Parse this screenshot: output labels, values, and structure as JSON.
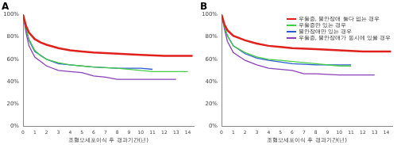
{
  "chart_data": [
    {
      "type": "line",
      "title": "A",
      "x_label": "조혈모세포이식 후 경과기간(년)",
      "xlim": [
        0,
        14.5
      ],
      "xticks": [
        0,
        1,
        2,
        3,
        4,
        5,
        6,
        7,
        8,
        9,
        10,
        11,
        12,
        13,
        14
      ],
      "ylim": [
        0,
        100
      ],
      "yticks": [
        {
          "value": 0,
          "label": "0%"
        },
        {
          "value": 20,
          "label": "20%"
        },
        {
          "value": 40,
          "label": "40%"
        },
        {
          "value": 60,
          "label": "60%"
        },
        {
          "value": 80,
          "label": "80%"
        },
        {
          "value": 100,
          "label": "100%"
        }
      ],
      "grid": false,
      "series": [
        {
          "color": "#e0201b",
          "x": [
            0,
            0.25,
            0.5,
            1,
            1.5,
            2,
            3,
            4,
            5,
            6,
            8,
            10,
            12,
            14,
            14.4
          ],
          "values": [
            100,
            90,
            84,
            78,
            75,
            73,
            70,
            68,
            67,
            66,
            65,
            64,
            63,
            63,
            63
          ]
        },
        {
          "color": "#44cc44",
          "x": [
            0,
            0.25,
            0.5,
            1,
            1.5,
            2,
            3,
            4,
            5,
            6,
            8,
            10,
            11,
            14
          ],
          "values": [
            100,
            88,
            78,
            68,
            63,
            60,
            57,
            55,
            54,
            53,
            52,
            50,
            49,
            49
          ]
        },
        {
          "color": "#2a5bd0",
          "x": [
            0,
            0.25,
            0.5,
            1,
            2,
            3,
            4,
            6,
            8,
            10,
            11
          ],
          "values": [
            100,
            87,
            77,
            67,
            60,
            56,
            55,
            53,
            52,
            52,
            51
          ]
        },
        {
          "color": "#8a3fb8",
          "x": [
            0,
            0.25,
            0.5,
            1,
            2,
            3,
            4,
            5,
            6,
            7,
            8,
            10,
            12,
            13
          ],
          "values": [
            100,
            84,
            72,
            62,
            54,
            50,
            49,
            48,
            45,
            44,
            42,
            42,
            42,
            42
          ]
        }
      ]
    },
    {
      "type": "line",
      "title": "B",
      "x_label": "조혈모세포이식 후 경과기간(년)",
      "xlim": [
        0,
        14.5
      ],
      "xticks": [
        0,
        1,
        2,
        3,
        4,
        5,
        6,
        7,
        8,
        9,
        10,
        11,
        12,
        13,
        14
      ],
      "ylim": [
        0,
        100
      ],
      "yticks": [
        {
          "value": 0,
          "label": "0%"
        },
        {
          "value": 20,
          "label": "20%"
        },
        {
          "value": 40,
          "label": "40%"
        },
        {
          "value": 60,
          "label": "60%"
        },
        {
          "value": 80,
          "label": "80%"
        },
        {
          "value": 100,
          "label": "100%"
        }
      ],
      "grid": false,
      "legend": "upper right",
      "series": [
        {
          "name": "우울증, 불안장애 둘다 없는 경우",
          "color": "#e0201b",
          "x": [
            0,
            0.25,
            0.5,
            1,
            2,
            3,
            4,
            5,
            6,
            8,
            10,
            12,
            14,
            14.4
          ],
          "values": [
            100,
            91,
            86,
            81,
            77,
            74,
            72,
            71,
            70,
            69,
            68,
            67,
            67,
            67
          ]
        },
        {
          "name": "우울증만 있는 경우",
          "color": "#44cc44",
          "x": [
            0,
            0.25,
            0.5,
            1,
            2,
            3,
            4,
            5,
            6,
            8,
            10,
            11
          ],
          "values": [
            100,
            89,
            81,
            72,
            66,
            62,
            60,
            59,
            58,
            56,
            54,
            54
          ]
        },
        {
          "name": "불안장애만 있는 경우",
          "color": "#2a5bd0",
          "x": [
            0,
            0.25,
            0.5,
            1,
            2,
            3,
            4,
            6,
            8,
            10,
            11
          ],
          "values": [
            100,
            89,
            81,
            72,
            65,
            61,
            59,
            56,
            55,
            55,
            55
          ]
        },
        {
          "name": "우울증, 불안장애가 동시에 있을 경우",
          "color": "#8a3fb8",
          "x": [
            0,
            0.25,
            0.5,
            1,
            2,
            3,
            4,
            6,
            7,
            8,
            10,
            13
          ],
          "values": [
            100,
            87,
            76,
            66,
            59,
            55,
            52,
            50,
            47,
            47,
            46,
            46
          ]
        }
      ]
    }
  ]
}
